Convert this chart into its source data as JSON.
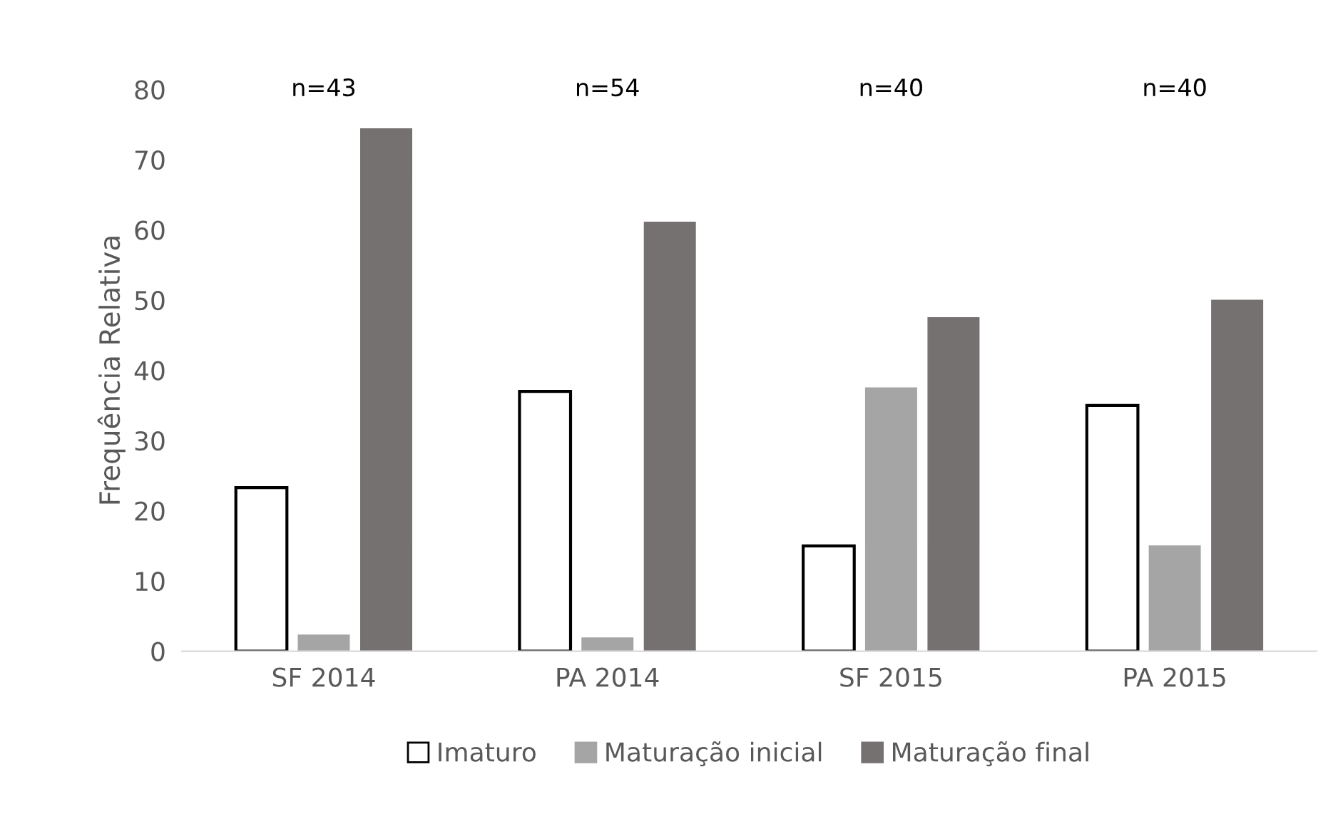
{
  "chart_data": {
    "type": "bar",
    "ylabel": "Frequência Relativa",
    "categories": [
      "SF 2014",
      "PA 2014",
      "SF 2015",
      "PA 2015"
    ],
    "series": [
      {
        "name": "Imaturo",
        "color": "#ffffff",
        "values": [
          23.3,
          37.0,
          15.0,
          35.0
        ]
      },
      {
        "name": "Maturação inicial",
        "color": "#a5a5a5",
        "values": [
          2.3,
          1.9,
          37.5,
          15.0
        ]
      },
      {
        "name": "Maturação final",
        "color": "#767171",
        "values": [
          74.4,
          61.1,
          47.5,
          50.0
        ]
      }
    ],
    "annotations": [
      "n=43",
      "n=54",
      "n=40",
      "n=40"
    ],
    "ylim": [
      0,
      80
    ],
    "yticks": [
      0,
      10,
      20,
      30,
      40,
      50,
      60,
      70,
      80
    ],
    "grid": false,
    "legend": "bottom"
  }
}
